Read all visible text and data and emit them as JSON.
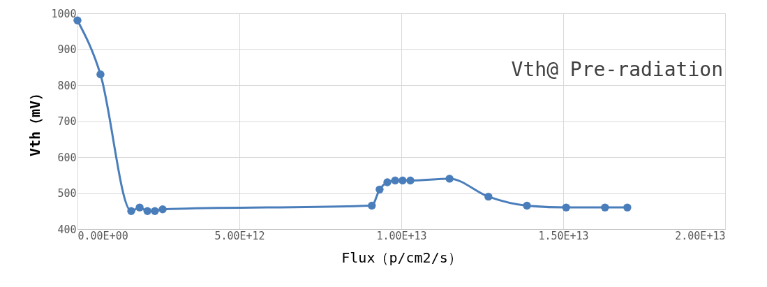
{
  "chart_data": {
    "type": "line",
    "xlabel": "Flux（p/cm2/s）",
    "ylabel": "Vth（mV）",
    "annotations": [
      "Vth@ Pre-radiation"
    ],
    "series": [
      {
        "color": "#4a7ebb",
        "x": [
          0,
          710000000000.0,
          1660000000000.0,
          1920000000000.0,
          2160000000000.0,
          2390000000000.0,
          2630000000000.0,
          9090000000000.0,
          9330000000000.0,
          9570000000000.0,
          9810000000000.0,
          10040000000000.0,
          10280000000000.0,
          11490000000000.0,
          12690000000000.0,
          13880000000000.0,
          15090000000000.0,
          16290000000000.0,
          16980000000000.0
        ],
        "values": [
          980,
          830,
          450,
          460,
          450,
          450,
          455,
          465,
          510,
          530,
          535,
          535,
          535,
          540,
          490,
          465,
          460,
          460,
          460
        ]
      }
    ],
    "xlim": [
      0,
      20000000000000.0
    ],
    "xticks": [
      {
        "value": 0,
        "label": "0.00E+00"
      },
      {
        "value": 5000000000000.0,
        "label": "5.00E+12"
      },
      {
        "value": 10000000000000.0,
        "label": "1.00E+13"
      },
      {
        "value": 15000000000000.0,
        "label": "1.50E+13"
      },
      {
        "value": 20000000000000.0,
        "label": "2.00E+13"
      }
    ],
    "ylim": [
      400,
      1000
    ],
    "yticks": [
      400,
      500,
      600,
      700,
      800,
      900,
      1000
    ],
    "grid": true,
    "marker": "circle",
    "line_style": "solid"
  }
}
